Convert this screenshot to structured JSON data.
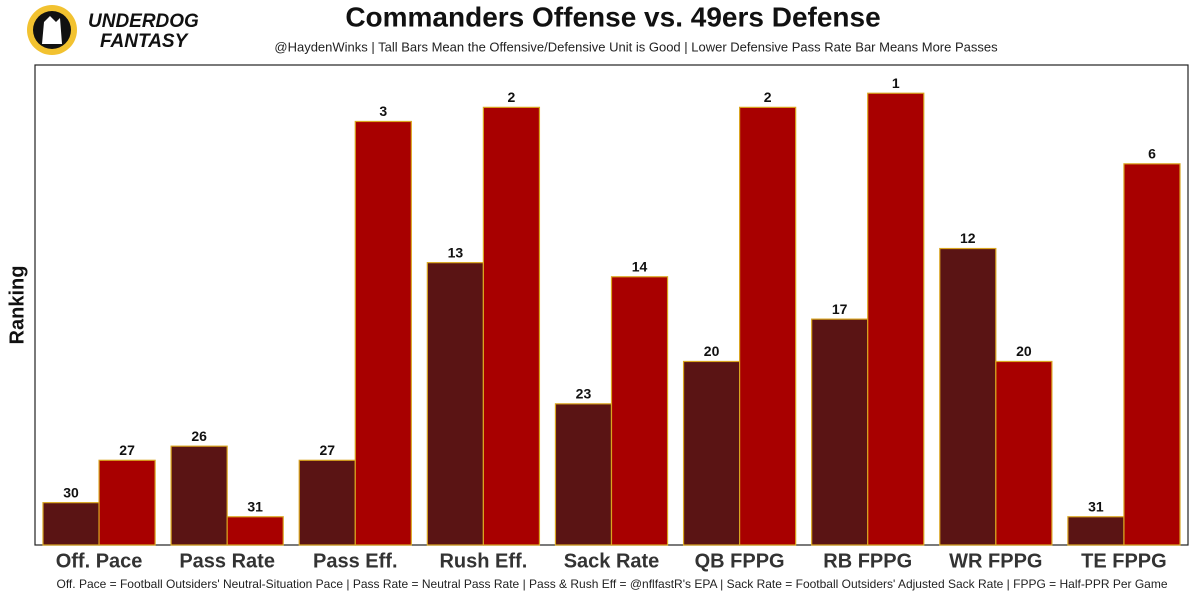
{
  "chart_data": {
    "type": "bar",
    "title": "Commanders Offense vs. 49ers Defense",
    "subtitle": "@HaydenWinks | Tall Bars Mean the Offensive/Defensive Unit is Good | Lower Defensive Pass Rate Bar Means More Passes",
    "caption": "Off. Pace = Football Outsiders' Neutral-Situation Pace | Pass Rate = Neutral Pass Rate | Pass & Rush Eff = @nflfastR's EPA | Sack Rate = Football Outsiders' Adjusted Sack Rate | FPPG = Half-PPR Per Game",
    "logo_lines": [
      "UNDERDOG",
      "FANTASY"
    ],
    "y_label": "Ranking",
    "categories": [
      "Off. Pace",
      "Pass Rate",
      "Pass Eff.",
      "Rush Eff.",
      "Sack Rate",
      "QB FPPG",
      "RB FPPG",
      "WR FPPG",
      "TE FPPG"
    ],
    "series": [
      {
        "color": "#5a1414",
        "values": [
          30,
          26,
          27,
          13,
          23,
          20,
          17,
          12,
          31
        ]
      },
      {
        "color": "#a80000",
        "values": [
          27,
          31,
          3,
          2,
          14,
          2,
          1,
          20,
          6
        ]
      }
    ],
    "bar_outline": "#d9a520",
    "ylim": [
      33,
      -1
    ]
  }
}
